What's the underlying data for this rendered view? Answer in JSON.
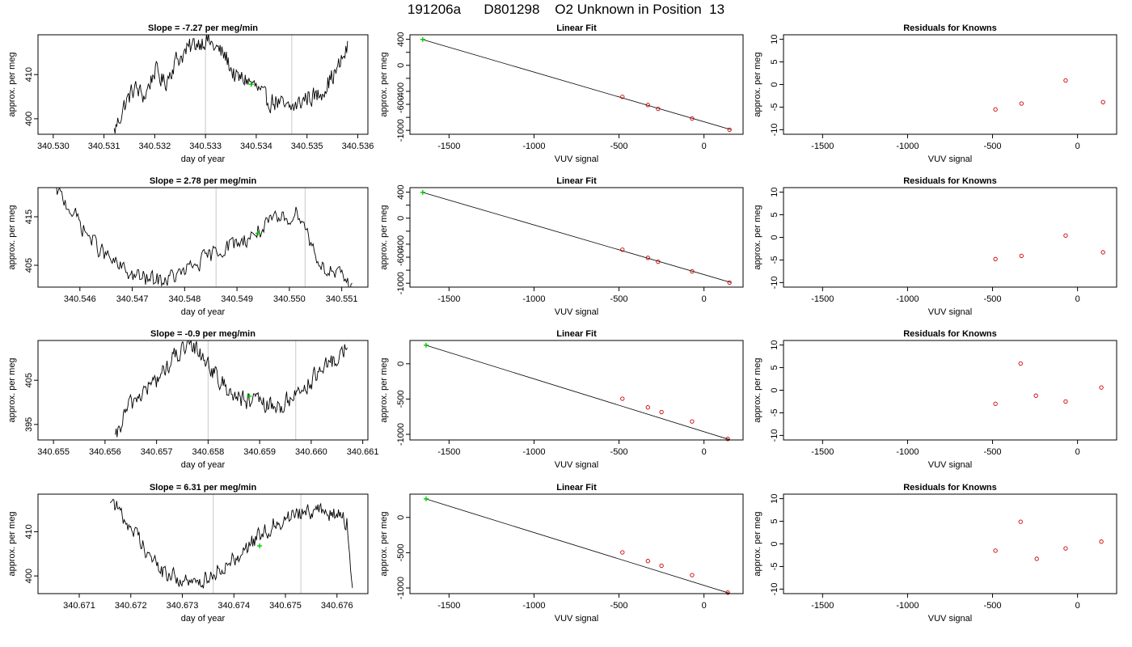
{
  "figure": {
    "title": "191206a      D801298    O2 Unknown in Position  13"
  },
  "colors": {
    "line": "#000000",
    "marker_line": "#c8c8c8",
    "highlight": "#00cc00",
    "residual": "#cc0000",
    "fit": "#000000",
    "axis": "#000000"
  },
  "chart_data": [
    {
      "type": "line",
      "title": "Slope =  -7.27  per meg/min",
      "xlabel": "day of year",
      "ylabel": "approx. per meg",
      "xlim": [
        340.5297,
        340.5362
      ],
      "ylim": [
        396.5,
        419.0
      ],
      "xticks": [
        340.53,
        340.531,
        340.532,
        340.533,
        340.534,
        340.535,
        340.536
      ],
      "xtick_labels": [
        "340.530",
        "340.531",
        "340.532",
        "340.533",
        "340.534",
        "340.535",
        "340.536"
      ],
      "yticks": [
        400,
        410
      ],
      "ytick_labels": [
        "400",
        "410"
      ],
      "vlines": [
        340.533,
        340.5347
      ],
      "trace_start": 340.5312,
      "trace_end": 340.5358,
      "trace_anchors": [
        [
          340.5312,
          397
        ],
        [
          340.5314,
          403
        ],
        [
          340.5316,
          407
        ],
        [
          340.5318,
          405
        ],
        [
          340.532,
          411
        ],
        [
          340.5322,
          408
        ],
        [
          340.5324,
          413
        ],
        [
          340.5326,
          415
        ],
        [
          340.5328,
          417
        ],
        [
          340.533,
          418
        ],
        [
          340.5332,
          416
        ],
        [
          340.5334,
          414
        ],
        [
          340.5336,
          409
        ],
        [
          340.5338,
          409
        ],
        [
          340.534,
          407
        ],
        [
          340.5342,
          404
        ],
        [
          340.5344,
          404
        ],
        [
          340.5346,
          402
        ],
        [
          340.5348,
          403
        ],
        [
          340.535,
          405
        ],
        [
          340.5352,
          405
        ],
        [
          340.5354,
          408
        ],
        [
          340.5356,
          411
        ],
        [
          340.5358,
          416
        ]
      ],
      "trace_noise": 2.0,
      "highlight": [
        340.5339,
        407.8
      ]
    },
    {
      "type": "scatter",
      "title": "Linear Fit",
      "xlabel": "VUV signal",
      "ylabel": "approx. per meg",
      "xlim": [
        -1730,
        230
      ],
      "ylim": [
        -1060,
        470
      ],
      "xticks": [
        -1500,
        -1000,
        -500,
        0
      ],
      "xtick_labels": [
        "-1500",
        "-1000",
        "-500",
        "0"
      ],
      "yticks": [
        -1000,
        -800,
        -600,
        -400,
        -200,
        0,
        200,
        400
      ],
      "ytick_labels": [
        "-1000",
        "",
        "-600",
        "-400",
        "",
        "0",
        "",
        "400"
      ],
      "fit_line": [
        [
          -1660,
          400
        ],
        [
          160,
          -990
        ]
      ],
      "points": [
        [
          -480,
          -485
        ],
        [
          -330,
          -610
        ],
        [
          -270,
          -670
        ],
        [
          -70,
          -818
        ],
        [
          150,
          -990
        ]
      ],
      "highlight": [
        -1655,
        398
      ]
    },
    {
      "type": "scatter",
      "title": "Residuals for Knowns",
      "xlabel": "VUV signal",
      "ylabel": "approx. per meg",
      "xlim": [
        -1730,
        230
      ],
      "ylim": [
        -11,
        11
      ],
      "xticks": [
        -1500,
        -1000,
        -500,
        0
      ],
      "xtick_labels": [
        "-1500",
        "-1000",
        "-500",
        "0"
      ],
      "yticks": [
        -10,
        -5,
        0,
        5,
        10
      ],
      "ytick_labels": [
        "-10",
        "-5",
        "0",
        "5",
        "10"
      ],
      "points": [
        [
          -483,
          -5.5
        ],
        [
          -330,
          -4.2
        ],
        [
          -70,
          0.9
        ],
        [
          150,
          -3.9
        ]
      ]
    },
    {
      "type": "line",
      "title": "Slope =  2.78  per meg/min",
      "xlabel": "day of year",
      "ylabel": "approx. per meg",
      "xlim": [
        340.5452,
        340.5515
      ],
      "ylim": [
        400.5,
        421.0
      ],
      "xticks": [
        340.546,
        340.547,
        340.548,
        340.549,
        340.55,
        340.551
      ],
      "xtick_labels": [
        "340.546",
        "340.547",
        "340.548",
        "340.549",
        "340.550",
        "340.551"
      ],
      "yticks": [
        405,
        415
      ],
      "ytick_labels": [
        "405",
        "415"
      ],
      "vlines": [
        340.5486,
        340.5503
      ],
      "trace_start": 340.5455,
      "trace_end": 340.5512,
      "trace_anchors": [
        [
          340.5455,
          421
        ],
        [
          340.5458,
          417
        ],
        [
          340.5461,
          412
        ],
        [
          340.5464,
          408
        ],
        [
          340.5467,
          405
        ],
        [
          340.547,
          403
        ],
        [
          340.5473,
          402
        ],
        [
          340.5476,
          402
        ],
        [
          340.5479,
          403
        ],
        [
          340.5482,
          405
        ],
        [
          340.5485,
          407
        ],
        [
          340.5488,
          409
        ],
        [
          340.5491,
          410
        ],
        [
          340.5494,
          412
        ],
        [
          340.5497,
          414
        ],
        [
          340.55,
          415
        ],
        [
          340.5502,
          416
        ],
        [
          340.5504,
          410
        ],
        [
          340.5506,
          405
        ],
        [
          340.5509,
          403
        ],
        [
          340.5512,
          401
        ]
      ],
      "trace_noise": 1.6,
      "highlight": [
        340.5494,
        411.6
      ]
    },
    {
      "type": "scatter",
      "title": "Linear Fit",
      "xlabel": "VUV signal",
      "ylabel": "approx. per meg",
      "xlim": [
        -1730,
        230
      ],
      "ylim": [
        -1060,
        470
      ],
      "xticks": [
        -1500,
        -1000,
        -500,
        0
      ],
      "xtick_labels": [
        "-1500",
        "-1000",
        "-500",
        "0"
      ],
      "yticks": [
        -1000,
        -800,
        -600,
        -400,
        -200,
        0,
        200,
        400
      ],
      "ytick_labels": [
        "-1000",
        "",
        "-600",
        "-400",
        "",
        "0",
        "",
        "400"
      ],
      "fit_line": [
        [
          -1660,
          400
        ],
        [
          160,
          -990
        ]
      ],
      "points": [
        [
          -480,
          -485
        ],
        [
          -330,
          -610
        ],
        [
          -270,
          -670
        ],
        [
          -70,
          -818
        ],
        [
          150,
          -990
        ]
      ],
      "highlight": [
        -1655,
        398
      ]
    },
    {
      "type": "scatter",
      "title": "Residuals for Knowns",
      "xlabel": "VUV signal",
      "ylabel": "approx. per meg",
      "xlim": [
        -1730,
        230
      ],
      "ylim": [
        -11,
        11
      ],
      "xticks": [
        -1500,
        -1000,
        -500,
        0
      ],
      "xtick_labels": [
        "-1500",
        "-1000",
        "-500",
        "0"
      ],
      "yticks": [
        -10,
        -5,
        0,
        5,
        10
      ],
      "ytick_labels": [
        "-10",
        "-5",
        "0",
        "5",
        "10"
      ],
      "points": [
        [
          -483,
          -4.8
        ],
        [
          -330,
          -4.1
        ],
        [
          -70,
          0.4
        ],
        [
          150,
          -3.3
        ]
      ]
    },
    {
      "type": "line",
      "title": "Slope =  -0.9  per meg/min",
      "xlabel": "day of year",
      "ylabel": "approx. per meg",
      "xlim": [
        340.6547,
        340.6611
      ],
      "ylim": [
        391.5,
        414.0
      ],
      "xticks": [
        340.655,
        340.656,
        340.657,
        340.658,
        340.659,
        340.66,
        340.661
      ],
      "xtick_labels": [
        "340.655",
        "340.656",
        "340.657",
        "340.658",
        "340.659",
        "340.660",
        "340.661"
      ],
      "yticks": [
        395,
        405
      ],
      "ytick_labels": [
        "395",
        "405"
      ],
      "vlines": [
        340.658,
        340.6597
      ],
      "trace_start": 340.6562,
      "trace_end": 340.6607,
      "trace_anchors": [
        [
          340.6562,
          391
        ],
        [
          340.6564,
          398
        ],
        [
          340.6566,
          401
        ],
        [
          340.6568,
          403
        ],
        [
          340.657,
          405
        ],
        [
          340.6572,
          408
        ],
        [
          340.6574,
          411
        ],
        [
          340.6576,
          412
        ],
        [
          340.6578,
          412
        ],
        [
          340.658,
          409
        ],
        [
          340.6582,
          405
        ],
        [
          340.6584,
          403
        ],
        [
          340.6586,
          401
        ],
        [
          340.6588,
          400
        ],
        [
          340.659,
          400
        ],
        [
          340.6592,
          399
        ],
        [
          340.6594,
          399
        ],
        [
          340.6596,
          401
        ],
        [
          340.6598,
          403
        ],
        [
          340.66,
          405
        ],
        [
          340.6602,
          407
        ],
        [
          340.6604,
          409
        ],
        [
          340.6606,
          411
        ],
        [
          340.6607,
          414
        ]
      ],
      "trace_noise": 1.9,
      "highlight": [
        340.6588,
        401.4
      ]
    },
    {
      "type": "scatter",
      "title": "Linear Fit",
      "xlabel": "VUV signal",
      "ylabel": "approx. per meg",
      "xlim": [
        -1730,
        230
      ],
      "ylim": [
        -1080,
        330
      ],
      "xticks": [
        -1500,
        -1000,
        -500,
        0
      ],
      "xtick_labels": [
        "-1500",
        "-1000",
        "-500",
        "0"
      ],
      "yticks": [
        -1000,
        -500,
        0
      ],
      "ytick_labels": [
        "-1000",
        "-500",
        "0"
      ],
      "fit_line": [
        [
          -1640,
          265
        ],
        [
          150,
          -1075
        ]
      ],
      "points": [
        [
          -480,
          -495
        ],
        [
          -330,
          -618
        ],
        [
          -250,
          -685
        ],
        [
          -70,
          -818
        ],
        [
          140,
          -1065
        ]
      ],
      "highlight": [
        -1635,
        263
      ]
    },
    {
      "type": "scatter",
      "title": "Residuals for Knowns",
      "xlabel": "VUV signal",
      "ylabel": "approx. per meg",
      "xlim": [
        -1730,
        230
      ],
      "ylim": [
        -11,
        11
      ],
      "xticks": [
        -1500,
        -1000,
        -500,
        0
      ],
      "xtick_labels": [
        "-1500",
        "-1000",
        "-500",
        "0"
      ],
      "yticks": [
        -10,
        -5,
        0,
        5,
        10
      ],
      "ytick_labels": [
        "-10",
        "-5",
        "0",
        "5",
        "10"
      ],
      "points": [
        [
          -483,
          -3.0
        ],
        [
          -335,
          5.9
        ],
        [
          -245,
          -1.2
        ],
        [
          -70,
          -2.5
        ],
        [
          140,
          0.6
        ]
      ]
    },
    {
      "type": "line",
      "title": "Slope =  6.31  per meg/min",
      "xlabel": "day of year",
      "ylabel": "approx. per meg",
      "xlim": [
        340.6702,
        340.6766
      ],
      "ylim": [
        396.0,
        418.5
      ],
      "xticks": [
        340.671,
        340.672,
        340.673,
        340.674,
        340.675,
        340.676
      ],
      "xtick_labels": [
        "340.671",
        "340.672",
        "340.673",
        "340.674",
        "340.675",
        "340.676"
      ],
      "yticks": [
        400,
        410
      ],
      "ytick_labels": [
        "400",
        "410"
      ],
      "vlines": [
        340.6736,
        340.6753
      ],
      "trace_start": 340.6716,
      "trace_end": 340.6763,
      "trace_anchors": [
        [
          340.6716,
          418
        ],
        [
          340.6718,
          414
        ],
        [
          340.672,
          411
        ],
        [
          340.6722,
          408
        ],
        [
          340.6724,
          404
        ],
        [
          340.6726,
          401
        ],
        [
          340.6728,
          400
        ],
        [
          340.673,
          399
        ],
        [
          340.6732,
          398
        ],
        [
          340.6734,
          399
        ],
        [
          340.6736,
          401
        ],
        [
          340.6738,
          402
        ],
        [
          340.674,
          404
        ],
        [
          340.6742,
          406
        ],
        [
          340.6744,
          408
        ],
        [
          340.6746,
          410
        ],
        [
          340.6748,
          412
        ],
        [
          340.675,
          413
        ],
        [
          340.6752,
          414
        ],
        [
          340.6754,
          415
        ],
        [
          340.6756,
          415
        ],
        [
          340.6758,
          414
        ],
        [
          340.676,
          414
        ],
        [
          340.6762,
          412
        ],
        [
          340.6763,
          396
        ]
      ],
      "trace_noise": 1.7,
      "highlight": [
        340.6745,
        406.8
      ]
    },
    {
      "type": "scatter",
      "title": "Linear Fit",
      "xlabel": "VUV signal",
      "ylabel": "approx. per meg",
      "xlim": [
        -1730,
        230
      ],
      "ylim": [
        -1080,
        330
      ],
      "xticks": [
        -1500,
        -1000,
        -500,
        0
      ],
      "xtick_labels": [
        "-1500",
        "-1000",
        "-500",
        "0"
      ],
      "yticks": [
        -1000,
        -500,
        0
      ],
      "ytick_labels": [
        "-1000",
        "-500",
        "0"
      ],
      "fit_line": [
        [
          -1640,
          265
        ],
        [
          150,
          -1075
        ]
      ],
      "points": [
        [
          -480,
          -495
        ],
        [
          -330,
          -618
        ],
        [
          -250,
          -685
        ],
        [
          -70,
          -818
        ],
        [
          140,
          -1065
        ]
      ],
      "highlight": [
        -1635,
        263
      ]
    },
    {
      "type": "scatter",
      "title": "Residuals for Knowns",
      "xlabel": "VUV signal",
      "ylabel": "approx. per meg",
      "xlim": [
        -1730,
        230
      ],
      "ylim": [
        -11,
        11
      ],
      "xticks": [
        -1500,
        -1000,
        -500,
        0
      ],
      "xtick_labels": [
        "-1500",
        "-1000",
        "-500",
        "0"
      ],
      "yticks": [
        -10,
        -5,
        0,
        5,
        10
      ],
      "ytick_labels": [
        "-10",
        "-5",
        "0",
        "5",
        "10"
      ],
      "points": [
        [
          -483,
          -1.5
        ],
        [
          -335,
          4.9
        ],
        [
          -240,
          -3.3
        ],
        [
          -70,
          -1.0
        ],
        [
          140,
          0.5
        ]
      ]
    }
  ]
}
